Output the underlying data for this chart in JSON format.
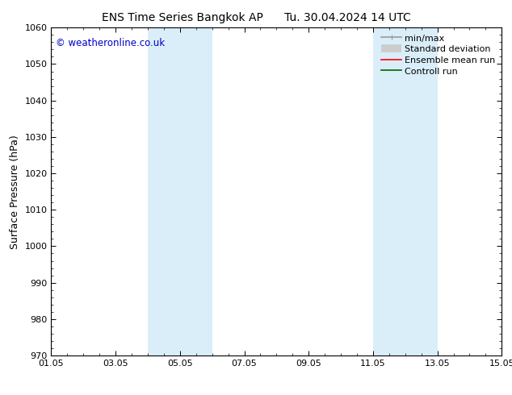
{
  "title_left": "ENS Time Series Bangkok AP",
  "title_right": "Tu. 30.04.2024 14 UTC",
  "ylabel": "Surface Pressure (hPa)",
  "xlabel": "",
  "xlim": [
    0,
    14
  ],
  "ylim": [
    970,
    1060
  ],
  "yticks": [
    970,
    980,
    990,
    1000,
    1010,
    1020,
    1030,
    1040,
    1050,
    1060
  ],
  "xtick_labels": [
    "01.05",
    "03.05",
    "05.05",
    "07.05",
    "09.05",
    "11.05",
    "13.05",
    "15.05"
  ],
  "xtick_positions": [
    0,
    2,
    4,
    6,
    8,
    10,
    12,
    14
  ],
  "shaded_bands": [
    {
      "x_start": 3.0,
      "x_end": 5.0,
      "color": "#daeef9"
    },
    {
      "x_start": 10.0,
      "x_end": 12.0,
      "color": "#daeef9"
    }
  ],
  "watermark_text": "© weatheronline.co.uk",
  "watermark_color": "#0000cc",
  "background_color": "#ffffff",
  "plot_bg_color": "#ffffff",
  "legend_entries": [
    {
      "label": "min/max",
      "color": "#999999",
      "linewidth": 1.2
    },
    {
      "label": "Standard deviation",
      "color": "#cccccc",
      "linewidth": 7
    },
    {
      "label": "Ensemble mean run",
      "color": "#ff0000",
      "linewidth": 1.2
    },
    {
      "label": "Controll run",
      "color": "#006600",
      "linewidth": 1.2
    }
  ],
  "title_fontsize": 10,
  "tick_fontsize": 8,
  "ylabel_fontsize": 9,
  "legend_fontsize": 8,
  "figsize": [
    6.34,
    4.9
  ],
  "dpi": 100
}
